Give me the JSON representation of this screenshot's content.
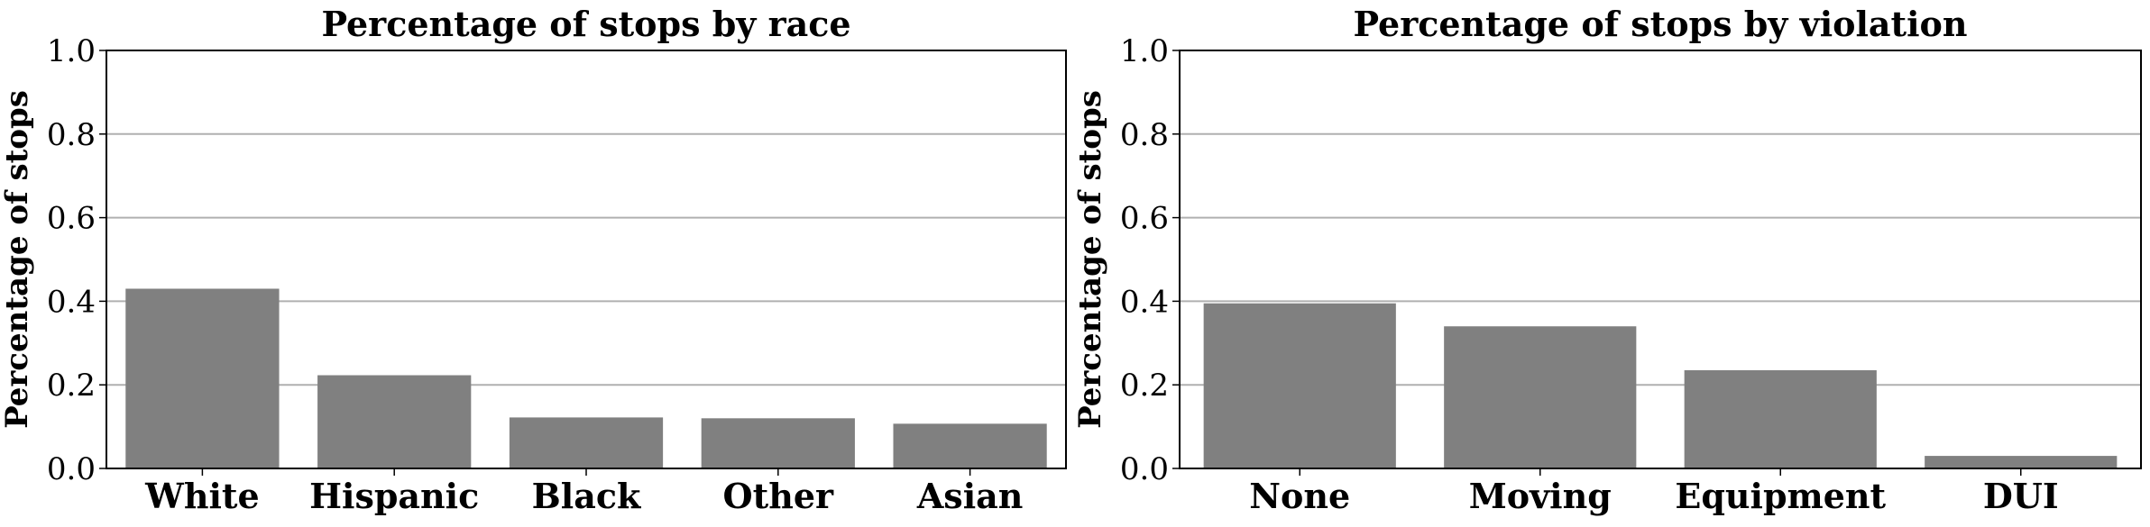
{
  "chart_data": [
    {
      "type": "bar",
      "title": "Percentage of stops by race",
      "xlabel": "",
      "ylabel": "Percentage of stops",
      "categories": [
        "White",
        "Hispanic",
        "Black",
        "Other",
        "Asian"
      ],
      "values": [
        0.43,
        0.223,
        0.122,
        0.12,
        0.107
      ],
      "ylim": [
        0,
        1.0
      ],
      "yticks": [
        "0.0",
        "0.2",
        "0.4",
        "0.6",
        "0.8",
        "1.0"
      ],
      "grid": "horizontal",
      "bar_color": "#808080"
    },
    {
      "type": "bar",
      "title": "Percentage of stops by violation",
      "xlabel": "",
      "ylabel": "Percentage of stops",
      "categories": [
        "None",
        "Moving",
        "Equipment",
        "DUI"
      ],
      "values": [
        0.395,
        0.34,
        0.235,
        0.03
      ],
      "ylim": [
        0,
        1.0
      ],
      "yticks": [
        "0.0",
        "0.2",
        "0.4",
        "0.6",
        "0.8",
        "1.0"
      ],
      "grid": "horizontal",
      "bar_color": "#808080"
    }
  ]
}
